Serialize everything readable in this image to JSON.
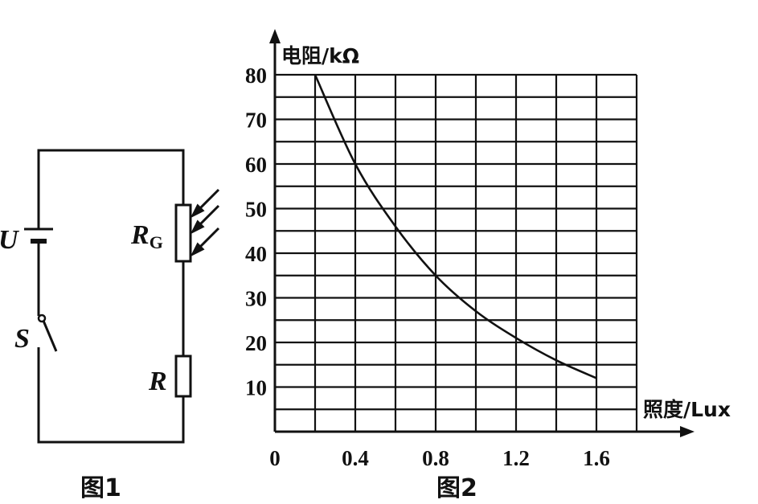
{
  "figure1": {
    "caption": "图1",
    "battery_label": "U",
    "switch_label": "S",
    "photoresistor_label": "R",
    "photoresistor_subscript": "G",
    "resistor_label": "R"
  },
  "figure2": {
    "caption": "图2",
    "chart_data": {
      "type": "line",
      "ylabel": "电阻/kΩ",
      "xlabel": "照度/Lux",
      "x_ticks": [
        "0",
        "0.4",
        "0.8",
        "1.2",
        "1.6"
      ],
      "y_ticks": [
        "80",
        "70",
        "60",
        "50",
        "40",
        "30",
        "20",
        "10"
      ],
      "xlim": [
        0,
        1.8
      ],
      "ylim": [
        0,
        80
      ],
      "grid": true,
      "series": [
        {
          "x": [
            0.2,
            0.4,
            0.6,
            0.8,
            1.0,
            1.2,
            1.4,
            1.6
          ],
          "values": [
            80,
            60,
            46,
            35,
            27,
            21,
            16,
            12
          ]
        }
      ]
    }
  }
}
